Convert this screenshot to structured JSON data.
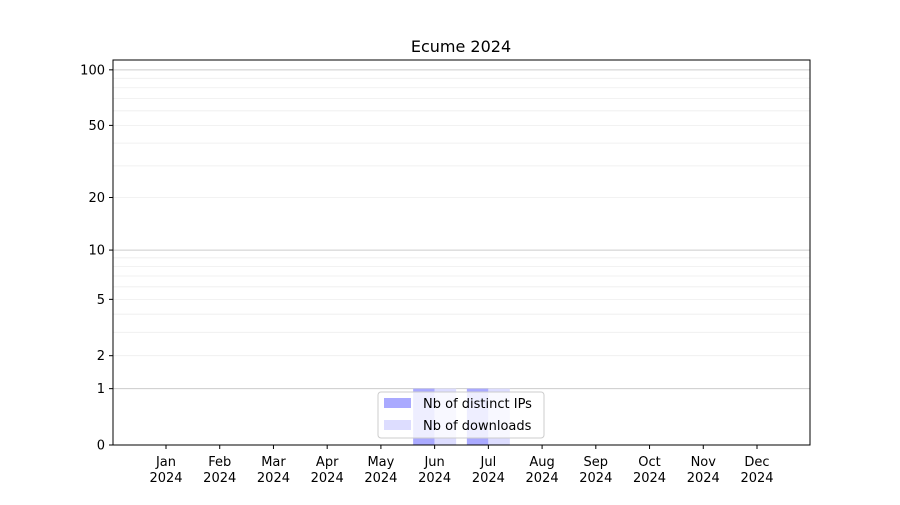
{
  "chart_data": {
    "type": "bar",
    "title": "Ecume 2024",
    "xlabel": "",
    "ylabel": "",
    "categories": [
      "Jan\n2024",
      "Feb\n2024",
      "Mar\n2024",
      "Apr\n2024",
      "May\n2024",
      "Jun\n2024",
      "Jul\n2024",
      "Aug\n2024",
      "Sep\n2024",
      "Oct\n2024",
      "Nov\n2024",
      "Dec\n2024"
    ],
    "series": [
      {
        "name": "Nb of distinct IPs",
        "color": "#aaaaff",
        "values": [
          0,
          0,
          0,
          0,
          0,
          1,
          1,
          0,
          0,
          0,
          0,
          0
        ]
      },
      {
        "name": "Nb of downloads",
        "color": "#ddddff",
        "values": [
          0,
          0,
          0,
          0,
          0,
          1,
          1,
          0,
          0,
          0,
          0,
          0
        ]
      }
    ],
    "yscale": "log(1+y)",
    "yticks": [
      0,
      1,
      2,
      5,
      10,
      20,
      50,
      100
    ],
    "ylim": [
      0,
      113
    ],
    "grid": true,
    "legend_placement": "lower center"
  }
}
